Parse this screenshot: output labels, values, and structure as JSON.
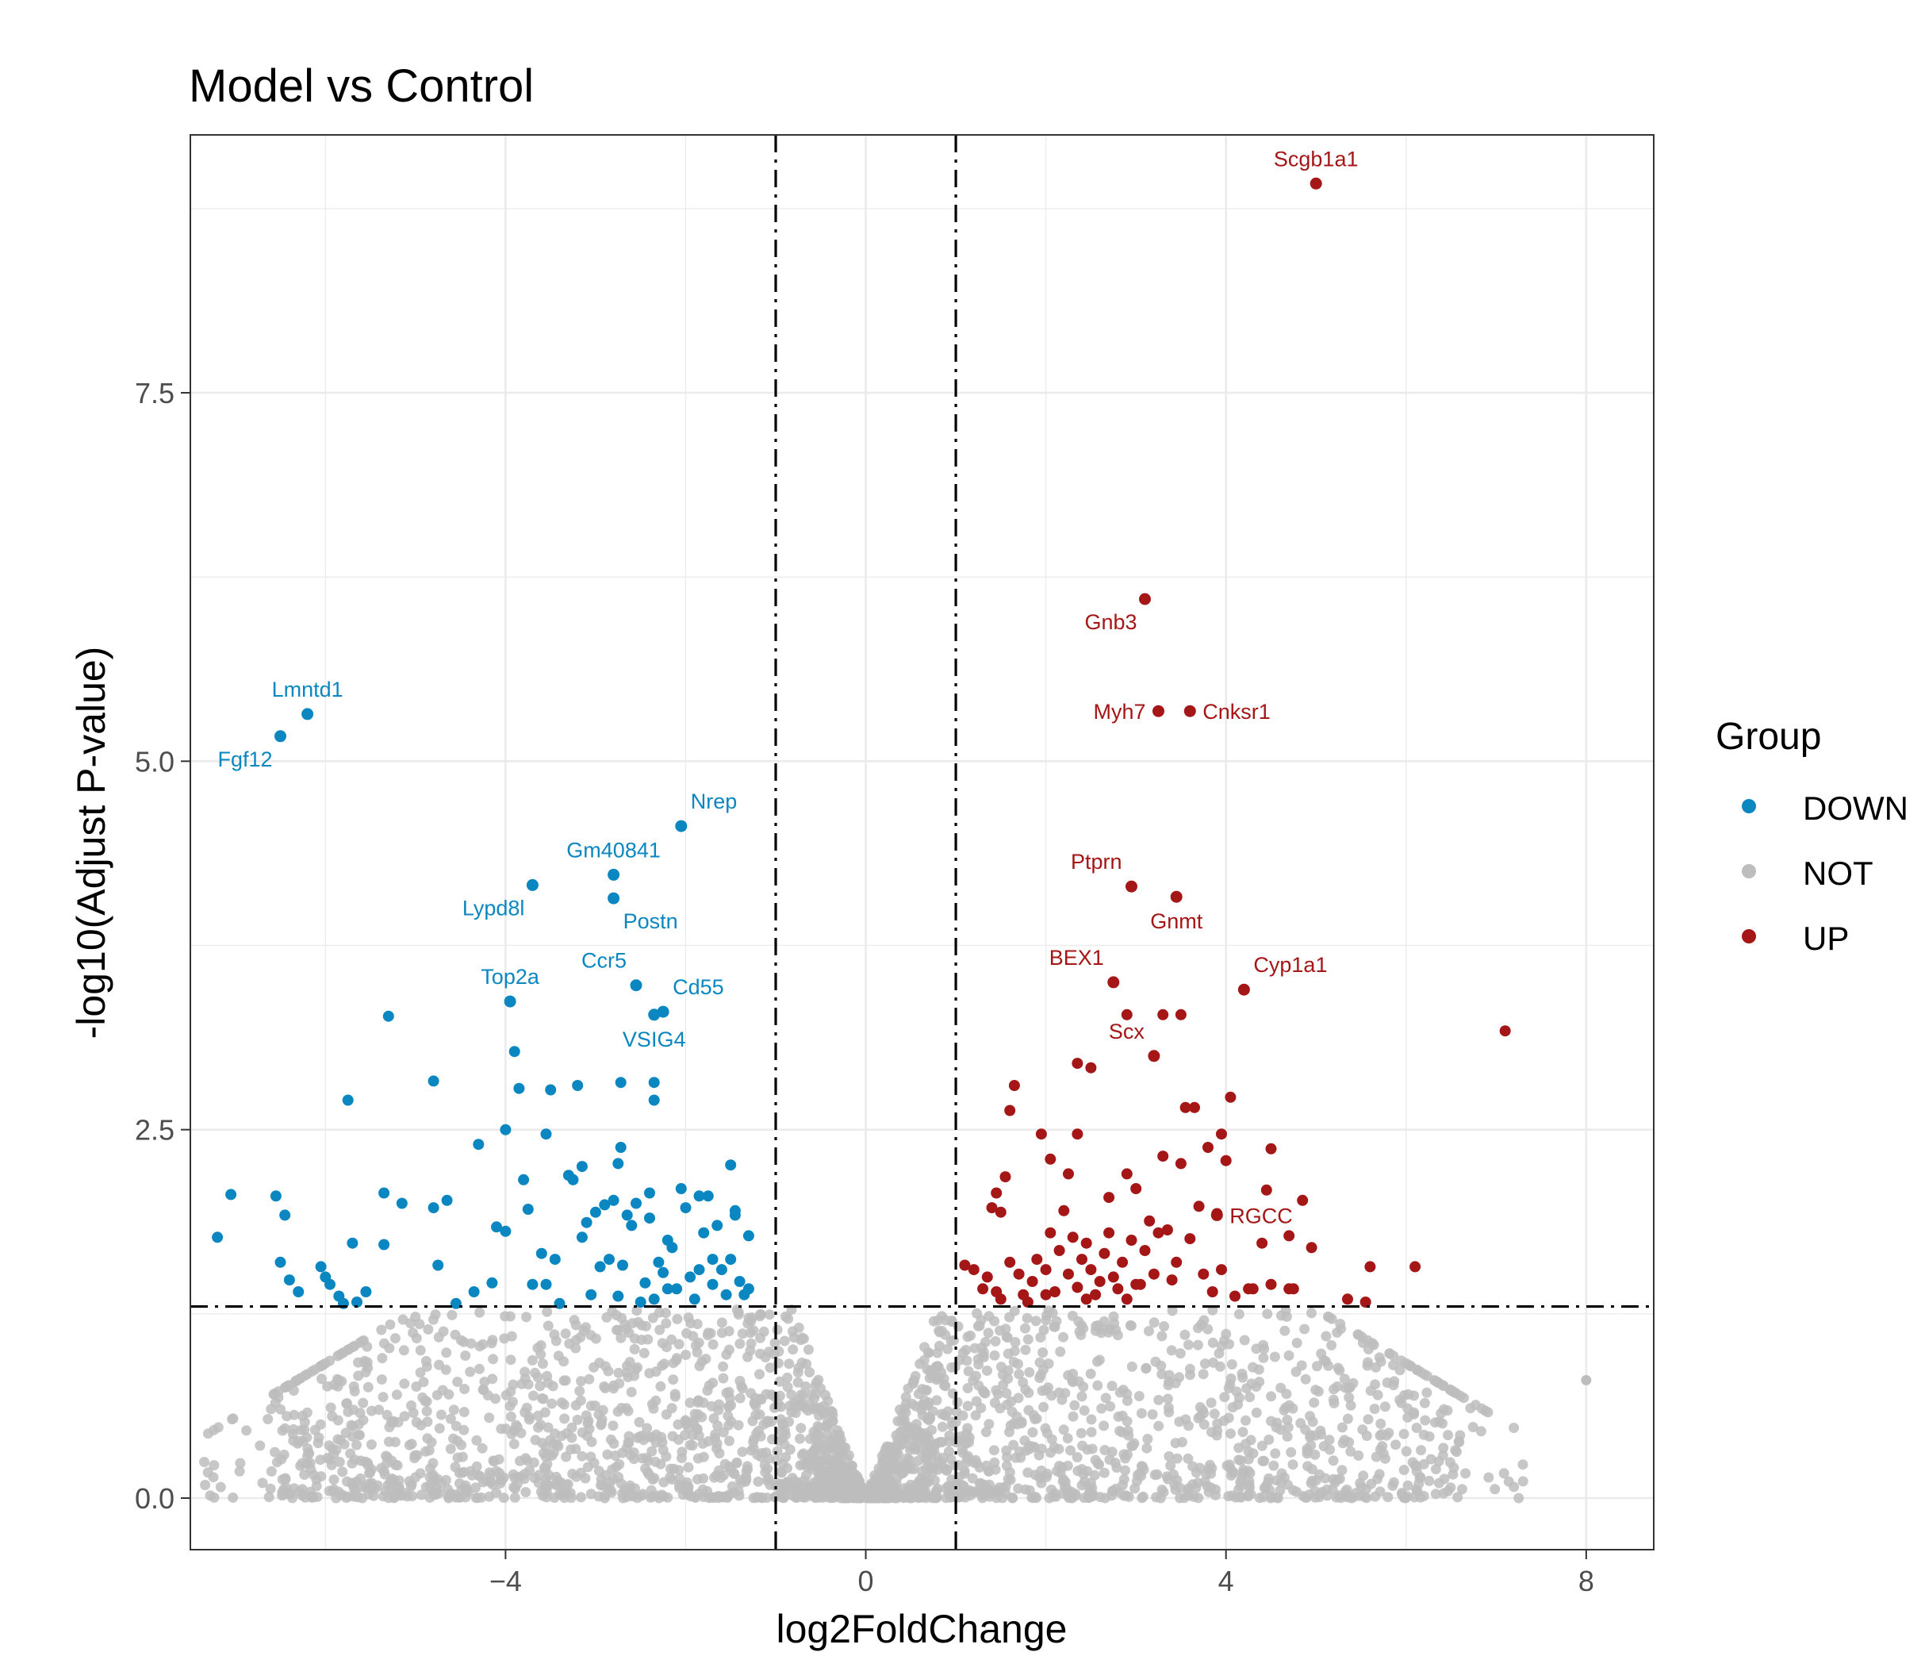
{
  "chart_data": {
    "type": "scatter",
    "title": "Model vs Control",
    "xlabel": "log2FoldChange",
    "ylabel": "-log10(Adjust P-value)",
    "xlim": [
      -7.5,
      8.75
    ],
    "ylim": [
      -0.35,
      9.25
    ],
    "x_ticks": [
      -4,
      0,
      4,
      8
    ],
    "x_tick_labels": [
      "−4",
      "0",
      "4",
      "8"
    ],
    "y_ticks": [
      0,
      2.5,
      5,
      7.5
    ],
    "y_tick_labels": [
      "0.0",
      "2.5",
      "5.0",
      "7.5"
    ],
    "grid": true,
    "thresholds": {
      "log2fc_low": -1,
      "log2fc_high": 1,
      "neg_log10_padj": 1.3
    },
    "legend": {
      "title": "Group",
      "position": "right",
      "entries": [
        {
          "label": "DOWN",
          "color": "#0a87c0"
        },
        {
          "label": "NOT",
          "color": "#bdbdbd"
        },
        {
          "label": "UP",
          "color": "#a51616"
        }
      ]
    },
    "colors": {
      "DOWN": "#0a87c0",
      "NOT": "#bdbdbd",
      "UP": "#a51616"
    },
    "labeled_points": [
      {
        "gene": "Lmntd1",
        "x": -6.2,
        "y": 5.32,
        "group": "DOWN",
        "pos": "top"
      },
      {
        "gene": "Fgf12",
        "x": -6.5,
        "y": 5.17,
        "group": "DOWN",
        "pos": "below-left"
      },
      {
        "gene": "Nrep",
        "x": -2.05,
        "y": 4.56,
        "group": "DOWN",
        "pos": "top-right"
      },
      {
        "gene": "Gm40841",
        "x": -2.8,
        "y": 4.23,
        "group": "DOWN",
        "pos": "top"
      },
      {
        "gene": "Lypd8l",
        "x": -3.7,
        "y": 4.16,
        "group": "DOWN",
        "pos": "below-left"
      },
      {
        "gene": "Postn",
        "x": -2.8,
        "y": 4.07,
        "group": "DOWN",
        "pos": "below-right"
      },
      {
        "gene": "Ccr5",
        "x": -2.55,
        "y": 3.48,
        "group": "DOWN",
        "pos": "top-left"
      },
      {
        "gene": "Top2a",
        "x": -3.95,
        "y": 3.37,
        "group": "DOWN",
        "pos": "top"
      },
      {
        "gene": "Cd55",
        "x": -2.25,
        "y": 3.3,
        "group": "DOWN",
        "pos": "top-right"
      },
      {
        "gene": "VSIG4",
        "x": -2.35,
        "y": 3.28,
        "group": "DOWN",
        "pos": "below"
      },
      {
        "gene": "Scgb1a1",
        "x": 5.0,
        "y": 8.92,
        "group": "UP",
        "pos": "top"
      },
      {
        "gene": "Gnb3",
        "x": 3.1,
        "y": 6.1,
        "group": "UP",
        "pos": "below-left"
      },
      {
        "gene": "Myh7",
        "x": 3.25,
        "y": 5.34,
        "group": "UP",
        "pos": "left"
      },
      {
        "gene": "Cnksr1",
        "x": 3.6,
        "y": 5.34,
        "group": "UP",
        "pos": "right"
      },
      {
        "gene": "Ptprn",
        "x": 2.95,
        "y": 4.15,
        "group": "UP",
        "pos": "top-left"
      },
      {
        "gene": "Gnmt",
        "x": 3.45,
        "y": 4.08,
        "group": "UP",
        "pos": "below"
      },
      {
        "gene": "BEX1",
        "x": 2.75,
        "y": 3.5,
        "group": "UP",
        "pos": "top-left"
      },
      {
        "gene": "Cyp1a1",
        "x": 4.2,
        "y": 3.45,
        "group": "UP",
        "pos": "top-right"
      },
      {
        "gene": "Scx",
        "x": 3.2,
        "y": 3.0,
        "group": "UP",
        "pos": "top-left"
      },
      {
        "gene": "RGCC",
        "x": 3.9,
        "y": 1.92,
        "group": "UP",
        "pos": "right"
      }
    ],
    "down_points": [
      [
        -7.2,
        1.77
      ],
      [
        -7.05,
        2.06
      ],
      [
        -6.55,
        2.05
      ],
      [
        -6.45,
        1.92
      ],
      [
        -6.5,
        1.6
      ],
      [
        -6.4,
        1.48
      ],
      [
        -6.3,
        1.4
      ],
      [
        -6.05,
        1.57
      ],
      [
        -6.0,
        1.5
      ],
      [
        -5.95,
        1.45
      ],
      [
        -5.85,
        1.37
      ],
      [
        -5.8,
        1.32
      ],
      [
        -5.75,
        2.7
      ],
      [
        -5.7,
        1.73
      ],
      [
        -5.65,
        1.33
      ],
      [
        -5.55,
        1.4
      ],
      [
        -5.35,
        1.72
      ],
      [
        -5.35,
        2.07
      ],
      [
        -5.3,
        3.27
      ],
      [
        -5.15,
        2.0
      ],
      [
        -4.8,
        1.97
      ],
      [
        -4.8,
        2.83
      ],
      [
        -4.65,
        2.02
      ],
      [
        -4.75,
        1.58
      ],
      [
        -4.55,
        1.32
      ],
      [
        -4.35,
        1.4
      ],
      [
        -4.3,
        2.4
      ],
      [
        -4.15,
        1.46
      ],
      [
        -4.1,
        1.84
      ],
      [
        -4.0,
        1.81
      ],
      [
        -4.0,
        2.5
      ],
      [
        -3.9,
        3.03
      ],
      [
        -3.85,
        2.78
      ],
      [
        -3.8,
        2.16
      ],
      [
        -3.75,
        1.96
      ],
      [
        -3.7,
        1.45
      ],
      [
        -3.6,
        1.66
      ],
      [
        -3.55,
        1.45
      ],
      [
        -3.55,
        2.47
      ],
      [
        -3.5,
        2.77
      ],
      [
        -3.45,
        1.62
      ],
      [
        -3.4,
        1.32
      ],
      [
        -3.3,
        2.19
      ],
      [
        -3.25,
        2.16
      ],
      [
        -3.2,
        2.8
      ],
      [
        -3.15,
        2.25
      ],
      [
        -3.15,
        1.77
      ],
      [
        -3.1,
        1.87
      ],
      [
        -3.05,
        1.38
      ],
      [
        -3.0,
        1.94
      ],
      [
        -2.95,
        1.57
      ],
      [
        -2.9,
        1.99
      ],
      [
        -2.85,
        1.62
      ],
      [
        -2.8,
        2.02
      ],
      [
        -2.75,
        1.37
      ],
      [
        -2.7,
        1.58
      ],
      [
        -2.65,
        1.92
      ],
      [
        -2.6,
        1.85
      ],
      [
        -2.55,
        2.0
      ],
      [
        -2.5,
        1.33
      ],
      [
        -2.45,
        1.46
      ],
      [
        -2.4,
        1.9
      ],
      [
        -2.4,
        2.07
      ],
      [
        -2.35,
        1.35
      ],
      [
        -2.3,
        1.6
      ],
      [
        -2.25,
        1.53
      ],
      [
        -2.2,
        1.75
      ],
      [
        -2.15,
        1.7
      ],
      [
        -2.1,
        1.42
      ],
      [
        -2.05,
        2.1
      ],
      [
        -2.0,
        1.97
      ],
      [
        -1.95,
        1.5
      ],
      [
        -1.9,
        1.35
      ],
      [
        -1.85,
        2.05
      ],
      [
        -1.8,
        1.8
      ],
      [
        -1.75,
        2.05
      ],
      [
        -1.7,
        1.45
      ],
      [
        -1.7,
        1.62
      ],
      [
        -1.65,
        1.85
      ],
      [
        -1.6,
        1.55
      ],
      [
        -1.55,
        1.38
      ],
      [
        -1.5,
        2.26
      ],
      [
        -1.5,
        1.62
      ],
      [
        -1.45,
        1.92
      ],
      [
        -1.4,
        1.47
      ],
      [
        -1.35,
        1.38
      ],
      [
        -1.3,
        1.78
      ],
      [
        -2.72,
        2.82
      ],
      [
        -2.35,
        2.7
      ],
      [
        -2.72,
        2.38
      ],
      [
        -2.75,
        2.27
      ],
      [
        -2.35,
        2.82
      ],
      [
        -1.45,
        1.95
      ],
      [
        -1.85,
        1.55
      ],
      [
        -2.2,
        1.42
      ],
      [
        -1.3,
        1.42
      ]
    ],
    "up_points": [
      [
        7.1,
        3.17
      ],
      [
        1.65,
        2.8
      ],
      [
        1.6,
        2.63
      ],
      [
        1.55,
        2.18
      ],
      [
        1.45,
        2.07
      ],
      [
        1.4,
        1.97
      ],
      [
        1.5,
        1.94
      ],
      [
        1.95,
        2.47
      ],
      [
        2.05,
        2.3
      ],
      [
        2.25,
        2.2
      ],
      [
        2.35,
        2.47
      ],
      [
        2.35,
        2.95
      ],
      [
        2.5,
        2.92
      ],
      [
        2.7,
        2.04
      ],
      [
        2.9,
        2.2
      ],
      [
        3.0,
        2.1
      ],
      [
        3.15,
        1.88
      ],
      [
        3.3,
        2.32
      ],
      [
        3.35,
        1.82
      ],
      [
        3.5,
        2.27
      ],
      [
        3.55,
        2.65
      ],
      [
        3.65,
        2.65
      ],
      [
        3.7,
        1.98
      ],
      [
        3.8,
        2.38
      ],
      [
        3.9,
        1.93
      ],
      [
        3.95,
        2.47
      ],
      [
        4.0,
        2.29
      ],
      [
        4.05,
        2.72
      ],
      [
        4.25,
        1.42
      ],
      [
        4.4,
        1.73
      ],
      [
        4.45,
        2.09
      ],
      [
        4.5,
        2.37
      ],
      [
        4.7,
        1.78
      ],
      [
        4.75,
        1.42
      ],
      [
        4.85,
        2.02
      ],
      [
        4.95,
        1.7
      ],
      [
        5.35,
        1.35
      ],
      [
        5.55,
        1.33
      ],
      [
        5.6,
        1.57
      ],
      [
        6.1,
        1.57
      ],
      [
        3.3,
        3.28
      ],
      [
        2.9,
        3.28
      ],
      [
        3.5,
        3.28
      ],
      [
        1.1,
        1.58
      ],
      [
        1.2,
        1.55
      ],
      [
        1.3,
        1.42
      ],
      [
        1.35,
        1.5
      ],
      [
        1.45,
        1.4
      ],
      [
        1.6,
        1.6
      ],
      [
        1.7,
        1.52
      ],
      [
        1.75,
        1.38
      ],
      [
        1.85,
        1.47
      ],
      [
        1.9,
        1.62
      ],
      [
        2.0,
        1.55
      ],
      [
        2.05,
        1.8
      ],
      [
        2.1,
        1.4
      ],
      [
        2.15,
        1.68
      ],
      [
        2.2,
        1.95
      ],
      [
        2.25,
        1.52
      ],
      [
        2.3,
        1.77
      ],
      [
        2.35,
        1.43
      ],
      [
        2.4,
        1.62
      ],
      [
        2.45,
        1.73
      ],
      [
        2.5,
        1.55
      ],
      [
        2.55,
        1.38
      ],
      [
        2.6,
        1.47
      ],
      [
        2.65,
        1.66
      ],
      [
        2.7,
        1.8
      ],
      [
        2.75,
        1.5
      ],
      [
        2.8,
        1.42
      ],
      [
        2.85,
        1.6
      ],
      [
        2.9,
        1.35
      ],
      [
        2.95,
        1.75
      ],
      [
        3.05,
        1.45
      ],
      [
        3.1,
        1.68
      ],
      [
        3.2,
        1.52
      ],
      [
        3.25,
        1.8
      ],
      [
        3.4,
        1.48
      ],
      [
        3.45,
        1.6
      ],
      [
        3.6,
        1.76
      ],
      [
        3.75,
        1.52
      ],
      [
        3.85,
        1.4
      ],
      [
        3.95,
        1.55
      ],
      [
        4.1,
        1.37
      ],
      [
        4.3,
        1.42
      ],
      [
        4.5,
        1.45
      ],
      [
        4.7,
        1.42
      ],
      [
        2.0,
        1.38
      ],
      [
        1.5,
        1.35
      ],
      [
        2.45,
        1.35
      ],
      [
        3.0,
        1.45
      ],
      [
        1.8,
        1.33
      ]
    ]
  }
}
